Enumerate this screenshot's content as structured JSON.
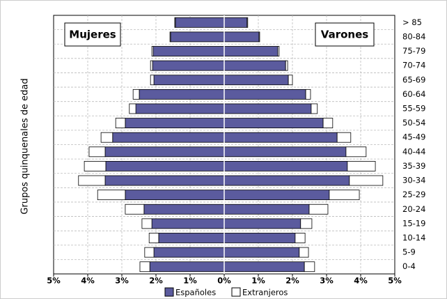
{
  "chart_data": {
    "type": "pyramid",
    "y_label": "Grupos quinquenales de edad",
    "left_label": "Mujeres",
    "right_label": "Varones",
    "categories": [
      "0-4",
      "5-9",
      "10-14",
      "15-19",
      "20-24",
      "25-29",
      "30-34",
      "35-39",
      "40-44",
      "45-49",
      "50-54",
      "55-59",
      "60-64",
      "65-69",
      "70-74",
      "75-79",
      "80-84",
      "> 85"
    ],
    "series": [
      {
        "name": "Españoles",
        "color": "#5b5b9e",
        "left": [
          2.18,
          2.06,
          1.92,
          2.12,
          2.35,
          2.9,
          3.49,
          3.47,
          3.49,
          3.27,
          2.9,
          2.59,
          2.49,
          2.06,
          2.1,
          2.08,
          1.57,
          1.43
        ],
        "right": [
          2.35,
          2.2,
          2.08,
          2.24,
          2.49,
          3.08,
          3.67,
          3.61,
          3.57,
          3.31,
          2.9,
          2.55,
          2.39,
          1.88,
          1.8,
          1.57,
          1.02,
          0.67
        ]
      },
      {
        "name": "Extranjeros",
        "color": "#ffffff",
        "left": [
          0.29,
          0.27,
          0.28,
          0.29,
          0.55,
          0.81,
          0.78,
          0.63,
          0.47,
          0.34,
          0.28,
          0.19,
          0.18,
          0.1,
          0.06,
          0.04,
          0.02,
          0.02
        ],
        "right": [
          0.3,
          0.27,
          0.29,
          0.33,
          0.55,
          0.88,
          0.98,
          0.82,
          0.59,
          0.4,
          0.28,
          0.18,
          0.14,
          0.12,
          0.06,
          0.04,
          0.02,
          0.02
        ]
      }
    ],
    "xlim": [
      0,
      5
    ],
    "xticks_left": [
      {
        "value": 5,
        "label": "5%"
      },
      {
        "value": 4,
        "label": "4%"
      },
      {
        "value": 3,
        "label": "3%"
      },
      {
        "value": 2,
        "label": "2%"
      },
      {
        "value": 1,
        "label": "1%"
      }
    ],
    "xticks_right": [
      {
        "value": 0,
        "label": "0%"
      },
      {
        "value": 1,
        "label": "1%"
      },
      {
        "value": 2,
        "label": "2%"
      },
      {
        "value": 3,
        "label": "3%"
      },
      {
        "value": 4,
        "label": "4%"
      },
      {
        "value": 5,
        "label": "5%"
      }
    ],
    "grid": true
  }
}
